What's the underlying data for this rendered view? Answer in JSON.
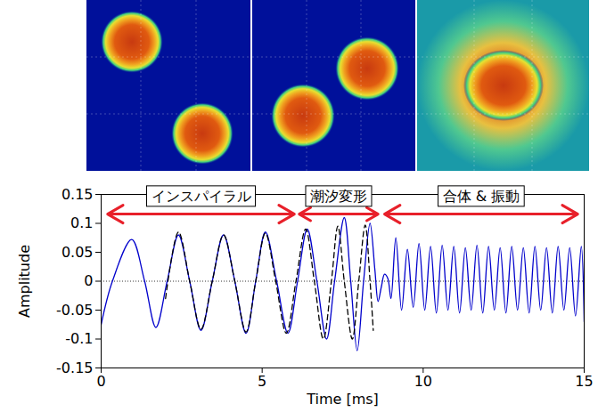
{
  "chart_data": {
    "type": "line",
    "xlabel": "Time [ms]",
    "ylabel": "Amplitude",
    "xlim": [
      0,
      15
    ],
    "xticks": [
      0,
      5,
      10,
      15
    ],
    "ylim": [
      -0.15,
      0.15
    ],
    "yticks": [
      -0.15,
      -0.1,
      -0.05,
      0,
      0.05,
      0.1,
      0.15
    ],
    "hlines": [
      0
    ],
    "series": [
      {
        "color": "#0000cc",
        "line_style": "solid",
        "x": [
          0,
          0.35,
          0.95,
          1.35,
          1.7,
          2.05,
          2.4,
          2.75,
          3.1,
          3.45,
          3.8,
          4.15,
          4.5,
          4.8,
          5.1,
          5.45,
          5.8,
          6.1,
          6.4,
          6.7,
          7.0,
          7.25,
          7.55,
          7.75,
          7.95,
          8.15,
          8.35,
          8.5,
          8.6,
          8.7,
          8.8,
          8.9,
          9.0,
          9.15,
          9.33,
          9.51,
          9.69,
          9.87,
          10.05,
          10.23,
          10.41,
          10.59,
          10.77,
          10.95,
          11.13,
          11.31,
          11.49,
          11.67,
          11.85,
          12.03,
          12.21,
          12.39,
          12.57,
          12.75,
          12.93,
          13.11,
          13.29,
          13.47,
          13.65,
          13.83,
          14.01,
          14.19,
          14.37,
          14.55,
          14.73,
          14.91,
          15.0
        ],
        "values": [
          -0.075,
          0,
          0.072,
          0,
          -0.08,
          0,
          0.08,
          0,
          -0.085,
          0,
          0.08,
          0,
          -0.09,
          0,
          0.085,
          0,
          -0.09,
          0,
          0.09,
          0,
          -0.1,
          0,
          0.11,
          0,
          -0.12,
          0,
          0.1,
          0.02,
          -0.035,
          -0.01,
          0.012,
          0.005,
          -0.03,
          0.075,
          -0.05,
          0.055,
          -0.045,
          0.065,
          -0.05,
          0.06,
          -0.055,
          0.062,
          -0.05,
          0.06,
          -0.055,
          0.058,
          -0.05,
          0.062,
          -0.055,
          0.06,
          -0.05,
          0.058,
          -0.055,
          0.06,
          -0.05,
          0.058,
          -0.055,
          0.06,
          -0.05,
          0.058,
          -0.055,
          0.06,
          -0.05,
          0.058,
          -0.06,
          0.06,
          -0.07
        ]
      },
      {
        "color": "#000000",
        "line_style": "dashed",
        "x": [
          2.0,
          2.4,
          2.75,
          3.1,
          3.45,
          3.8,
          4.15,
          4.5,
          4.8,
          5.1,
          5.42,
          5.75,
          6.05,
          6.35,
          6.62,
          6.9,
          7.15,
          7.35,
          7.55,
          7.8,
          8.0,
          8.2,
          8.35,
          8.45
        ],
        "values": [
          -0.03,
          0.085,
          0,
          -0.083,
          0,
          0.08,
          0,
          -0.088,
          0,
          0.083,
          0,
          -0.09,
          0,
          0.09,
          0,
          -0.1,
          0,
          0.095,
          0,
          -0.1,
          0,
          0.097,
          0,
          -0.085
        ]
      }
    ],
    "annotations": [
      {
        "text": "インスパイラル",
        "x": [
          0.2,
          6.0
        ],
        "y": 0.116
      },
      {
        "text": "潮汐変形",
        "x": [
          6.15,
          8.6
        ],
        "y": 0.116
      },
      {
        "text": "合体 & 振動",
        "x": [
          8.8,
          14.8
        ],
        "y": 0.116
      }
    ]
  }
}
